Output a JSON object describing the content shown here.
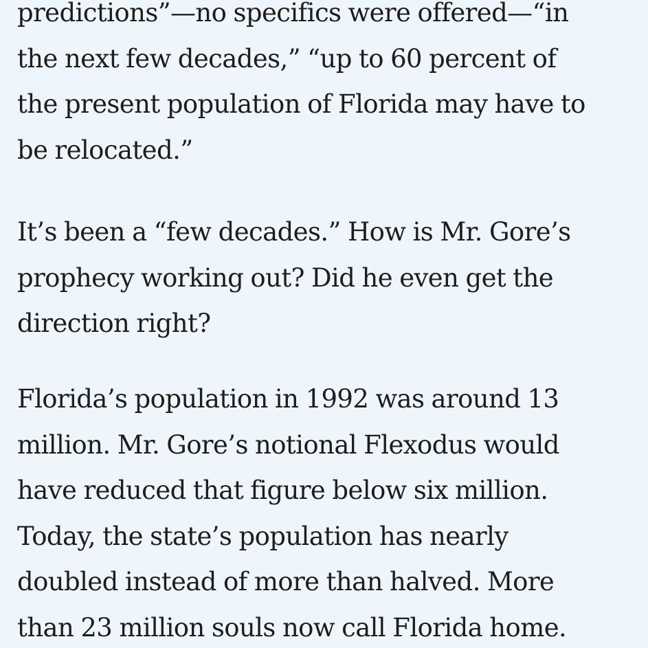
{
  "article": {
    "paragraphs": [
      {
        "lines": [
          "predictions”—no specifics were offered—“in",
          "the next few decades,” “up to 60 percent of",
          "the present population of Florida may have to",
          "be relocated.”"
        ]
      },
      {
        "lines": [
          "It’s been a “few decades.” How is Mr. Gore’s",
          "prophecy working out? Did he even get the",
          "direction right?"
        ]
      },
      {
        "lines": [
          "Florida’s population in 1992 was around 13",
          "million. Mr. Gore’s notional Flexodus would",
          "have reduced that figure below six million.",
          "Today, the state’s population has nearly",
          "doubled instead of more than halved. More",
          "than 23 million souls now call Florida home."
        ]
      }
    ]
  }
}
